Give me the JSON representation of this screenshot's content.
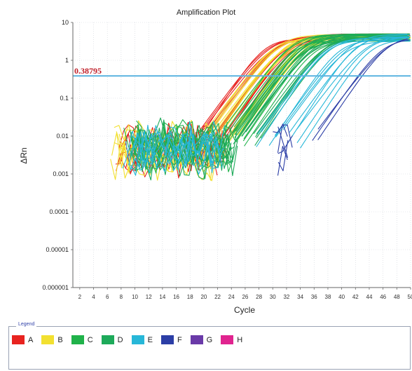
{
  "chart_data": {
    "type": "line",
    "title": "Amplification Plot",
    "xlabel": "Cycle",
    "ylabel": "ΔRn",
    "xlim": [
      1,
      50
    ],
    "ylim": [
      1e-06,
      10
    ],
    "yscale": "log",
    "x_ticks": [
      "2",
      "4",
      "6",
      "8",
      "10",
      "12",
      "14",
      "16",
      "18",
      "20",
      "22",
      "24",
      "26",
      "28",
      "30",
      "32",
      "34",
      "36",
      "38",
      "40",
      "42",
      "44",
      "46",
      "48",
      "50"
    ],
    "y_ticks": [
      "10",
      "1",
      "0.1",
      "0.01",
      "0.001",
      "0.0001",
      "0.00001",
      "0.000001"
    ],
    "threshold": {
      "value": 0.38795,
      "label": "0.38795",
      "color": "#5ab4e0"
    },
    "grid": "dotted",
    "legend": {
      "title": "Legend",
      "position": "bottom"
    },
    "series": [
      {
        "name": "A",
        "color": "#e8231f",
        "noise_cycles": [
          7,
          22
        ],
        "ct": [
          27,
          28,
          29,
          30,
          31
        ]
      },
      {
        "name": "B",
        "color": "#f2e030",
        "noise_cycles": [
          6,
          22
        ],
        "ct": [
          28,
          29,
          30,
          31,
          32,
          33
        ]
      },
      {
        "name": "C",
        "color": "#20b24a",
        "noise_cycles": [
          8,
          23
        ],
        "ct": [
          31,
          32,
          33,
          34
        ]
      },
      {
        "name": "D",
        "color": "#1eaa5a",
        "noise_cycles": [
          9,
          24
        ],
        "ct": [
          32,
          33,
          34,
          35,
          36
        ]
      },
      {
        "name": "E",
        "color": "#27b7d8",
        "noise_cycles": [
          8,
          22
        ],
        "ct": [
          36,
          38,
          40,
          42
        ]
      },
      {
        "name": "F",
        "color": "#2c3ea6",
        "noise_cycles": [
          30,
          32
        ],
        "ct": [
          44
        ]
      },
      {
        "name": "G",
        "color": "#6a3aa8",
        "noise_cycles": [],
        "ct": []
      },
      {
        "name": "H",
        "color": "#e0248f",
        "noise_cycles": [],
        "ct": []
      }
    ]
  }
}
